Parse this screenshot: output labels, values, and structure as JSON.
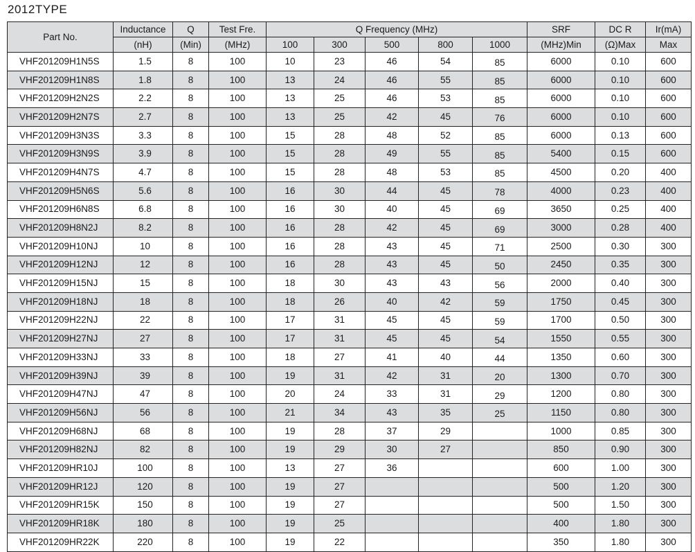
{
  "title": "2012TYPE",
  "header": {
    "part_no": "Part No.",
    "inductance": [
      "Inductance",
      "(nH)"
    ],
    "q": [
      "Q",
      "(Min)"
    ],
    "test_freq": [
      "Test Fre.",
      "(MHz)"
    ],
    "q_frequency": "Q Frequency (MHz)",
    "q_freq_cols": [
      "100",
      "300",
      "500",
      "800",
      "1000"
    ],
    "srf": [
      "SRF",
      "(MHz)Min"
    ],
    "dcr": [
      "DC R",
      "(Ω)Max"
    ],
    "ir": [
      "Ir(mA)",
      "Max"
    ]
  },
  "rows": [
    [
      "VHF201209H1N5S",
      "1.5",
      "8",
      "100",
      "10",
      "23",
      "46",
      "54",
      "85",
      "6000",
      "0.10",
      "600"
    ],
    [
      "VHF201209H1N8S",
      "1.8",
      "8",
      "100",
      "13",
      "24",
      "46",
      "55",
      "85",
      "6000",
      "0.10",
      "600"
    ],
    [
      "VHF201209H2N2S",
      "2.2",
      "8",
      "100",
      "13",
      "25",
      "46",
      "53",
      "85",
      "6000",
      "0.10",
      "600"
    ],
    [
      "VHF201209H2N7S",
      "2.7",
      "8",
      "100",
      "13",
      "25",
      "42",
      "45",
      "76",
      "6000",
      "0.10",
      "600"
    ],
    [
      "VHF201209H3N3S",
      "3.3",
      "8",
      "100",
      "15",
      "28",
      "48",
      "52",
      "85",
      "6000",
      "0.13",
      "600"
    ],
    [
      "VHF201209H3N9S",
      "3.9",
      "8",
      "100",
      "15",
      "28",
      "49",
      "55",
      "85",
      "5400",
      "0.15",
      "600"
    ],
    [
      "VHF201209H4N7S",
      "4.7",
      "8",
      "100",
      "15",
      "28",
      "48",
      "53",
      "85",
      "4500",
      "0.20",
      "400"
    ],
    [
      "VHF201209H5N6S",
      "5.6",
      "8",
      "100",
      "16",
      "30",
      "44",
      "45",
      "78",
      "4000",
      "0.23",
      "400"
    ],
    [
      "VHF201209H6N8S",
      "6.8",
      "8",
      "100",
      "16",
      "30",
      "40",
      "45",
      "69",
      "3650",
      "0.25",
      "400"
    ],
    [
      "VHF201209H8N2J",
      "8.2",
      "8",
      "100",
      "16",
      "28",
      "42",
      "45",
      "69",
      "3000",
      "0.28",
      "400"
    ],
    [
      "VHF201209H10NJ",
      "10",
      "8",
      "100",
      "16",
      "28",
      "43",
      "45",
      "71",
      "2500",
      "0.30",
      "300"
    ],
    [
      "VHF201209H12NJ",
      "12",
      "8",
      "100",
      "16",
      "28",
      "43",
      "45",
      "50",
      "2450",
      "0.35",
      "300"
    ],
    [
      "VHF201209H15NJ",
      "15",
      "8",
      "100",
      "18",
      "30",
      "43",
      "43",
      "56",
      "2000",
      "0.40",
      "300"
    ],
    [
      "VHF201209H18NJ",
      "18",
      "8",
      "100",
      "18",
      "26",
      "40",
      "42",
      "59",
      "1750",
      "0.45",
      "300"
    ],
    [
      "VHF201209H22NJ",
      "22",
      "8",
      "100",
      "17",
      "31",
      "45",
      "45",
      "59",
      "1700",
      "0.50",
      "300"
    ],
    [
      "VHF201209H27NJ",
      "27",
      "8",
      "100",
      "17",
      "31",
      "45",
      "45",
      "54",
      "1550",
      "0.55",
      "300"
    ],
    [
      "VHF201209H33NJ",
      "33",
      "8",
      "100",
      "18",
      "27",
      "41",
      "40",
      "44",
      "1350",
      "0.60",
      "300"
    ],
    [
      "VHF201209H39NJ",
      "39",
      "8",
      "100",
      "19",
      "31",
      "42",
      "31",
      "20",
      "1300",
      "0.70",
      "300"
    ],
    [
      "VHF201209H47NJ",
      "47",
      "8",
      "100",
      "20",
      "24",
      "33",
      "31",
      "29",
      "1200",
      "0.80",
      "300"
    ],
    [
      "VHF201209H56NJ",
      "56",
      "8",
      "100",
      "21",
      "34",
      "43",
      "35",
      "25",
      "1150",
      "0.80",
      "300"
    ],
    [
      "VHF201209H68NJ",
      "68",
      "8",
      "100",
      "19",
      "28",
      "37",
      "29",
      "",
      "1000",
      "0.85",
      "300"
    ],
    [
      "VHF201209H82NJ",
      "82",
      "8",
      "100",
      "19",
      "29",
      "30",
      "27",
      "",
      "850",
      "0.90",
      "300"
    ],
    [
      "VHF201209HR10J",
      "100",
      "8",
      "100",
      "13",
      "27",
      "36",
      "",
      "",
      "600",
      "1.00",
      "300"
    ],
    [
      "VHF201209HR12J",
      "120",
      "8",
      "100",
      "19",
      "27",
      "",
      "",
      "",
      "500",
      "1.20",
      "300"
    ],
    [
      "VHF201209HR15K",
      "150",
      "8",
      "100",
      "19",
      "27",
      "",
      "",
      "",
      "500",
      "1.50",
      "300"
    ],
    [
      "VHF201209HR18K",
      "180",
      "8",
      "100",
      "19",
      "25",
      "",
      "",
      "",
      "400",
      "1.80",
      "300"
    ],
    [
      "VHF201209HR22K",
      "220",
      "8",
      "100",
      "19",
      "22",
      "",
      "",
      "",
      "350",
      "1.80",
      "300"
    ]
  ]
}
